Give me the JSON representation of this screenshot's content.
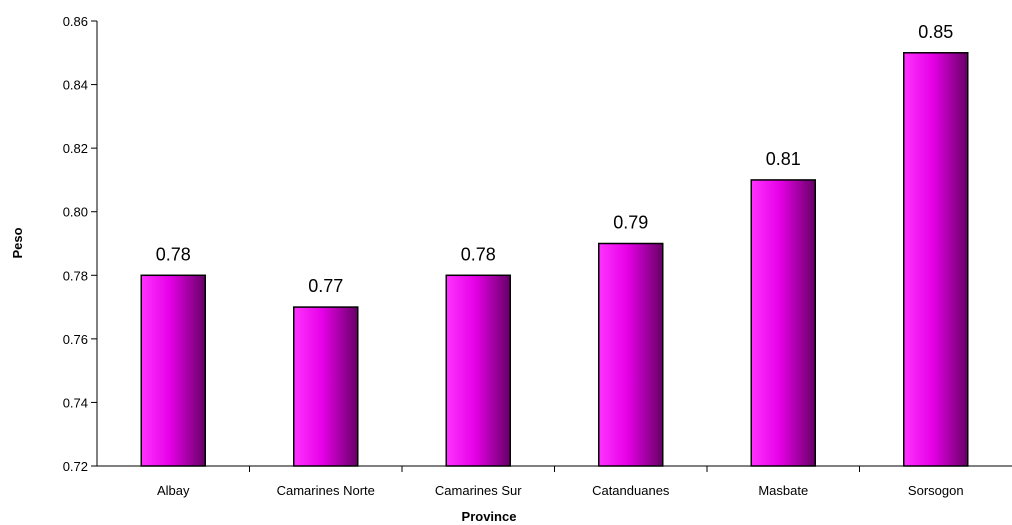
{
  "chart_data": {
    "type": "bar",
    "title": "",
    "xlabel": "Province",
    "ylabel": "Peso",
    "categories": [
      "Albay",
      "Camarines Norte",
      "Camarines Sur",
      "Catanduanes",
      "Masbate",
      "Sorsogon"
    ],
    "values": [
      0.78,
      0.77,
      0.78,
      0.79,
      0.81,
      0.85
    ],
    "data_labels": [
      "0.78",
      "0.77",
      "0.78",
      "0.79",
      "0.81",
      "0.85"
    ],
    "ylim": [
      0.72,
      0.86
    ],
    "yticks": [
      "0.72",
      "0.74",
      "0.76",
      "0.78",
      "0.80",
      "0.82",
      "0.84",
      "0.86"
    ],
    "grid": false,
    "legend": "none",
    "bar_colors": {
      "light": "#ff33ff",
      "mid": "#e600e6",
      "dark": "#660066",
      "outline": "#000000"
    }
  }
}
